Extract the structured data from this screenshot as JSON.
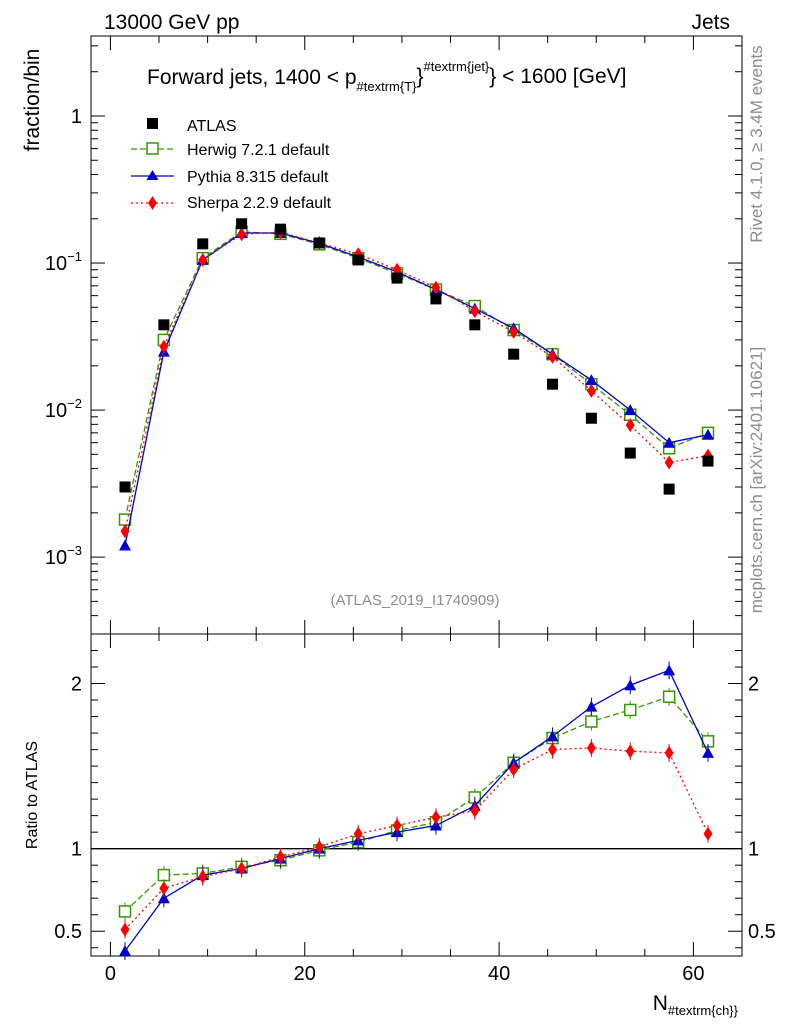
{
  "header": {
    "energy_label": "13000 GeV pp",
    "category_label": "Jets"
  },
  "side_labels": {
    "rivet": "Rivet 4.1.0, ≥ 3.4M events",
    "site": "mcplots.cern.ch [arXiv:2401.10621]"
  },
  "chart_data": {
    "type": "line",
    "title": {
      "prefix": "Forward jets, 1400 < p",
      "sub": "#textrm{T}",
      "sup": "#textrm{jet}",
      "suffix": "} < 1600 [GeV]"
    },
    "analysis_id": "(ATLAS_2019_I1740909)",
    "xlabel": {
      "main": "N",
      "sub": "#textrm{ch}}"
    },
    "ylabel_main": "fraction/bin",
    "ylabel_ratio": "Ratio to ATLAS",
    "xlim": [
      -2,
      65
    ],
    "ylim_main": [
      0.0003,
      3.5
    ],
    "ylog_main": true,
    "ylim_ratio": [
      0.35,
      2.3
    ],
    "x_ticks": [
      {
        "v": 0,
        "label": "0"
      },
      {
        "v": 20,
        "label": "20"
      },
      {
        "v": 40,
        "label": "40"
      },
      {
        "v": 60,
        "label": "60"
      }
    ],
    "main_y_ticks": [
      {
        "v": 1,
        "base": "1",
        "exp": ""
      },
      {
        "v": 0.1,
        "base": "10",
        "exp": "−1"
      },
      {
        "v": 0.01,
        "base": "10",
        "exp": "−2"
      },
      {
        "v": 0.001,
        "base": "10",
        "exp": "−3"
      }
    ],
    "ratio_y_ticks": [
      {
        "v": 0.5,
        "label": "0.5"
      },
      {
        "v": 1,
        "label": "1"
      },
      {
        "v": 2,
        "label": "2"
      }
    ],
    "x": [
      1.5,
      5.5,
      9.5,
      13.5,
      17.5,
      21.5,
      25.5,
      29.5,
      33.5,
      37.5,
      41.5,
      45.5,
      49.5,
      53.5,
      57.5,
      61.5
    ],
    "data": {
      "name": "ATLAS",
      "color": "#000000",
      "values": [
        0.003,
        0.038,
        0.135,
        0.185,
        0.17,
        0.137,
        0.105,
        0.079,
        0.057,
        0.038,
        0.024,
        0.015,
        0.0088,
        0.0051,
        0.0029,
        0.0045
      ]
    },
    "series": [
      {
        "name": "Herwig 7.2.1 default",
        "color": "#339900",
        "marker": "open-square",
        "dash": "6,3",
        "values": [
          0.0018,
          0.03,
          0.108,
          0.163,
          0.158,
          0.134,
          0.108,
          0.085,
          0.066,
          0.051,
          0.035,
          0.024,
          0.015,
          0.0093,
          0.0055,
          0.007
        ],
        "ratio": [
          0.62,
          0.84,
          0.85,
          0.89,
          0.93,
          0.99,
          1.04,
          1.11,
          1.16,
          1.31,
          1.52,
          1.67,
          1.77,
          1.84,
          1.92,
          1.65
        ]
      },
      {
        "name": "Pythia 8.315 default",
        "color": "#0000cc",
        "marker": "triangle",
        "dash": "",
        "values": [
          0.0012,
          0.025,
          0.105,
          0.16,
          0.16,
          0.136,
          0.11,
          0.087,
          0.066,
          0.049,
          0.036,
          0.024,
          0.016,
          0.01,
          0.006,
          0.0068
        ],
        "ratio": [
          0.38,
          0.7,
          0.84,
          0.88,
          0.94,
          1.0,
          1.05,
          1.1,
          1.14,
          1.26,
          1.52,
          1.68,
          1.86,
          1.99,
          2.08,
          1.58
        ]
      },
      {
        "name": "Sherpa 2.2.9 default",
        "color": "#ff0000",
        "marker": "diamond",
        "dash": "2,3",
        "values": [
          0.0015,
          0.027,
          0.105,
          0.157,
          0.162,
          0.137,
          0.115,
          0.09,
          0.068,
          0.047,
          0.034,
          0.023,
          0.0135,
          0.0079,
          0.0044,
          0.0049
        ],
        "ratio": [
          0.51,
          0.76,
          0.83,
          0.88,
          0.95,
          1.01,
          1.09,
          1.14,
          1.19,
          1.23,
          1.48,
          1.6,
          1.61,
          1.59,
          1.58,
          1.09
        ]
      }
    ]
  }
}
